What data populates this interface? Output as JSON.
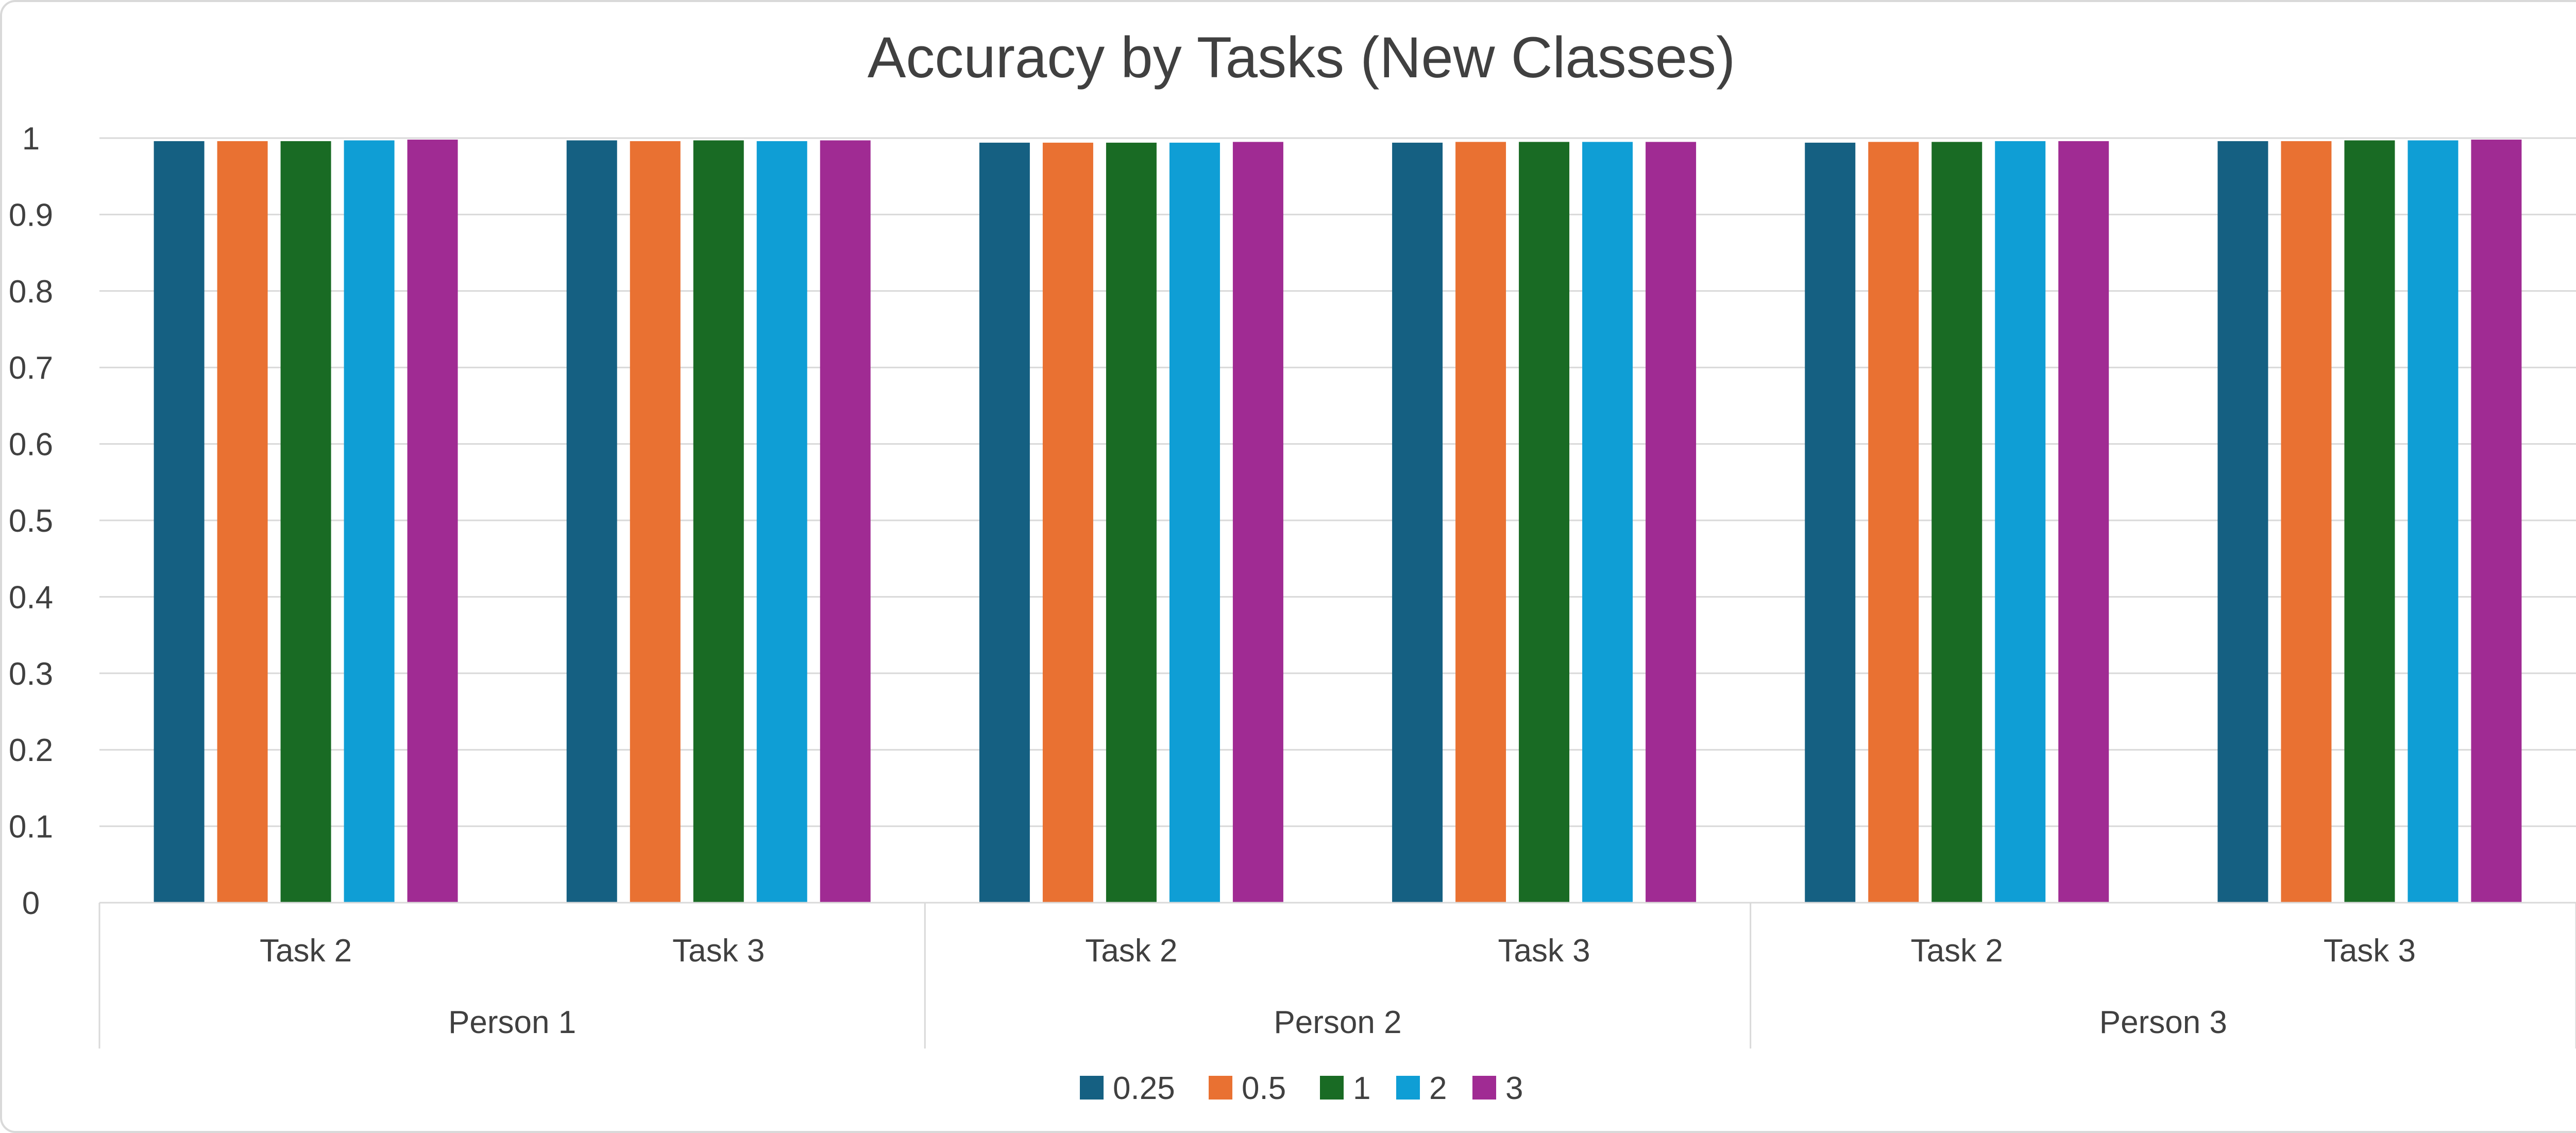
{
  "chart_data": {
    "type": "bar",
    "title": "Accuracy by Tasks (New Classes)",
    "xlabel": "",
    "ylabel": "",
    "ylim": [
      0,
      1
    ],
    "yticks": [
      "0",
      "0.1",
      "0.2",
      "0.3",
      "0.4",
      "0.5",
      "0.6",
      "0.7",
      "0.8",
      "0.9",
      "1"
    ],
    "grid": true,
    "legend_position": "bottom",
    "groups": [
      {
        "label": "Person 1",
        "categories": [
          "Task 2",
          "Task 3"
        ]
      },
      {
        "label": "Person 2",
        "categories": [
          "Task 2",
          "Task 3"
        ]
      },
      {
        "label": "Person 3",
        "categories": [
          "Task 2",
          "Task 3"
        ]
      }
    ],
    "categories": [
      "Task 2",
      "Task 3",
      "Task 2",
      "Task 3",
      "Task 2",
      "Task 3"
    ],
    "series": [
      {
        "name": "0.25",
        "color": "#156082",
        "values": [
          0.996,
          0.997,
          0.994,
          0.994,
          0.994,
          0.996
        ]
      },
      {
        "name": "0.5",
        "color": "#e97132",
        "values": [
          0.996,
          0.996,
          0.994,
          0.995,
          0.995,
          0.996
        ]
      },
      {
        "name": "1",
        "color": "#196b24",
        "values": [
          0.996,
          0.997,
          0.994,
          0.995,
          0.995,
          0.997
        ]
      },
      {
        "name": "2",
        "color": "#0f9ed5",
        "values": [
          0.997,
          0.996,
          0.994,
          0.995,
          0.996,
          0.997
        ]
      },
      {
        "name": "3",
        "color": "#a02b93",
        "values": [
          0.998,
          0.997,
          0.995,
          0.995,
          0.996,
          0.998
        ]
      }
    ]
  }
}
